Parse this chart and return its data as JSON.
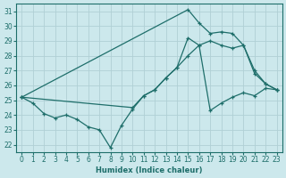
{
  "xlabel": "Humidex (Indice chaleur)",
  "ylabel": "",
  "xlim": [
    -0.5,
    23.5
  ],
  "ylim": [
    21.5,
    31.5
  ],
  "xticks": [
    0,
    1,
    2,
    3,
    4,
    5,
    6,
    7,
    8,
    9,
    10,
    11,
    12,
    13,
    14,
    15,
    16,
    17,
    18,
    19,
    20,
    21,
    22,
    23
  ],
  "yticks": [
    22,
    23,
    24,
    25,
    26,
    27,
    28,
    29,
    30,
    31
  ],
  "bg_color": "#cce8ec",
  "grid_color": "#b0d0d5",
  "line_color": "#1e6e6a",
  "series": [
    {
      "x": [
        0,
        15,
        16,
        17,
        18,
        19,
        20,
        21,
        22,
        23
      ],
      "y": [
        25.2,
        31.1,
        30.2,
        29.5,
        29.6,
        29.5,
        28.7,
        27.0,
        26.1,
        25.7
      ]
    },
    {
      "x": [
        0,
        10,
        11,
        12,
        13,
        14,
        15,
        16,
        17,
        18,
        19,
        20,
        21,
        22,
        23
      ],
      "y": [
        25.2,
        24.5,
        25.3,
        25.7,
        26.5,
        27.2,
        28.0,
        28.7,
        29.0,
        28.7,
        28.5,
        28.7,
        26.8,
        26.1,
        25.7
      ]
    },
    {
      "x": [
        0,
        1,
        2,
        3,
        4,
        5,
        6,
        7,
        8,
        9,
        10,
        11,
        12,
        13,
        14,
        15,
        16,
        17,
        18,
        19,
        20,
        21,
        22,
        23
      ],
      "y": [
        25.2,
        24.8,
        24.1,
        23.8,
        24.0,
        23.7,
        23.2,
        23.0,
        21.8,
        23.3,
        24.4,
        25.3,
        25.7,
        26.5,
        27.2,
        29.2,
        28.7,
        24.3,
        24.8,
        25.2,
        25.5,
        25.3,
        25.8,
        25.7
      ]
    }
  ]
}
